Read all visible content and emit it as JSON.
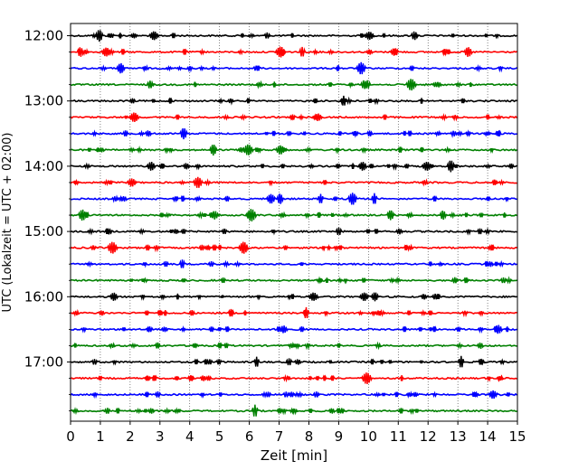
{
  "chart_data": {
    "type": "line",
    "title": "",
    "xlabel": "Zeit  [min]",
    "ylabel": "UTC (Lokalzeit = UTC + 02:00)",
    "xlim": [
      0,
      15
    ],
    "x_ticks": [
      0,
      1,
      2,
      3,
      4,
      5,
      6,
      7,
      8,
      9,
      10,
      11,
      12,
      13,
      14,
      15
    ],
    "y_tick_labels": [
      "12:00",
      "13:00",
      "14:00",
      "15:00",
      "16:00",
      "17:00"
    ],
    "grid": "vertical dotted at each minute",
    "trace_colors": [
      "#000000",
      "#ff0000",
      "#0000ff",
      "#008000"
    ],
    "traces": [
      {
        "start": "12:00",
        "color": "#000000"
      },
      {
        "start": "12:15",
        "color": "#ff0000"
      },
      {
        "start": "12:30",
        "color": "#0000ff"
      },
      {
        "start": "12:45",
        "color": "#008000"
      },
      {
        "start": "13:00",
        "color": "#000000"
      },
      {
        "start": "13:15",
        "color": "#ff0000"
      },
      {
        "start": "13:30",
        "color": "#0000ff"
      },
      {
        "start": "13:45",
        "color": "#008000"
      },
      {
        "start": "14:00",
        "color": "#000000"
      },
      {
        "start": "14:15",
        "color": "#ff0000"
      },
      {
        "start": "14:30",
        "color": "#0000ff"
      },
      {
        "start": "14:45",
        "color": "#008000"
      },
      {
        "start": "15:00",
        "color": "#000000"
      },
      {
        "start": "15:15",
        "color": "#ff0000"
      },
      {
        "start": "15:30",
        "color": "#0000ff"
      },
      {
        "start": "15:45",
        "color": "#008000"
      },
      {
        "start": "16:00",
        "color": "#000000"
      },
      {
        "start": "16:15",
        "color": "#ff0000"
      },
      {
        "start": "16:30",
        "color": "#0000ff"
      },
      {
        "start": "16:45",
        "color": "#008000"
      },
      {
        "start": "17:00",
        "color": "#000000"
      },
      {
        "start": "17:15",
        "color": "#ff0000"
      },
      {
        "start": "17:30",
        "color": "#0000ff"
      },
      {
        "start": "17:45",
        "color": "#008000"
      }
    ]
  }
}
